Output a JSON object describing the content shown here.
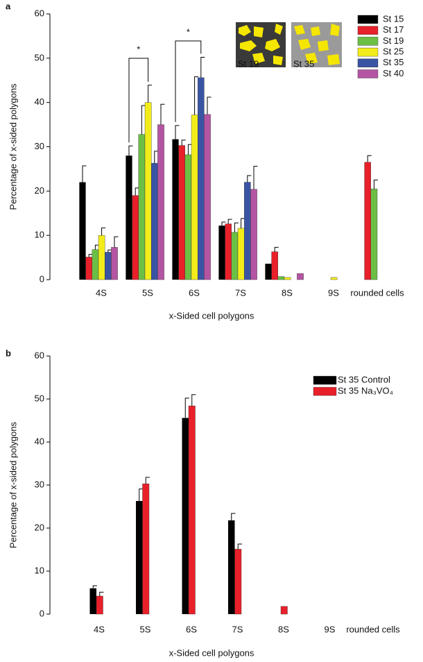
{
  "chart_data": [
    {
      "type": "bar",
      "panel_label": "a",
      "ylabel": "Percentage of x-sided polygons",
      "xlabel": "x-Sided cell polygons",
      "categories": [
        "4S",
        "5S",
        "6S",
        "7S",
        "8S",
        "9S",
        "rounded cells"
      ],
      "ylim": [
        0,
        60
      ],
      "yticks": [
        0,
        10,
        20,
        30,
        40,
        50,
        60
      ],
      "legend": "upper right",
      "annotations": [
        "*",
        "*"
      ],
      "inset_labels": [
        "St 19",
        "St 35"
      ],
      "series": [
        {
          "name": "St 15",
          "color": "#000000",
          "values": [
            22,
            28,
            31.7,
            12.2,
            3.6,
            0,
            0
          ],
          "errors": [
            3.7,
            2.2,
            3.1,
            0.8,
            0,
            0,
            0
          ]
        },
        {
          "name": "St 17",
          "color": "#e8202a",
          "values": [
            5.1,
            19,
            30.3,
            12.6,
            6.3,
            0,
            26.5
          ],
          "errors": [
            0.6,
            1.7,
            1.2,
            1,
            1,
            0,
            1.5
          ]
        },
        {
          "name": "St 19",
          "color": "#6cbf45",
          "values": [
            6.8,
            32.8,
            28.2,
            10.7,
            0.7,
            0,
            20.5
          ],
          "errors": [
            1,
            6.5,
            2.3,
            2.1,
            0,
            0,
            2
          ]
        },
        {
          "name": "St 25",
          "color": "#f2ec1b",
          "values": [
            10,
            40,
            37.2,
            11.6,
            0.5,
            0.5,
            0
          ],
          "errors": [
            1.7,
            3.9,
            8.6,
            2.2,
            0,
            0,
            0
          ]
        },
        {
          "name": "St 35",
          "color": "#3a54a4",
          "values": [
            6.2,
            26.3,
            45.6,
            22,
            0,
            0,
            0
          ],
          "errors": [
            0.5,
            2.7,
            4.6,
            1.5,
            0,
            0,
            0
          ]
        },
        {
          "name": "St 40",
          "color": "#b455a3",
          "values": [
            7.3,
            35,
            37.3,
            20.4,
            1.4,
            0,
            0
          ],
          "errors": [
            2.4,
            4.6,
            3.9,
            5.2,
            0,
            0,
            0
          ]
        }
      ]
    },
    {
      "type": "bar",
      "panel_label": "b",
      "ylabel": "Percentage of x-sided polygons",
      "xlabel": "x-Sided cell polygons",
      "categories": [
        "4S",
        "5S",
        "6S",
        "7S",
        "8S",
        "9S",
        "rounded cells"
      ],
      "ylim": [
        0,
        60
      ],
      "yticks": [
        0,
        10,
        20,
        30,
        40,
        50,
        60
      ],
      "legend": "upper right",
      "series": [
        {
          "name": "St 35 Control",
          "color": "#000000",
          "values": [
            6,
            26.3,
            45.6,
            21.8,
            0,
            0,
            0
          ],
          "errors": [
            0.6,
            2.8,
            4.6,
            1.6,
            0,
            0,
            0
          ]
        },
        {
          "name": "St 35 Na₃VO₄",
          "color": "#e8202a",
          "values": [
            4.2,
            30.3,
            48.4,
            15.1,
            1.8,
            0,
            0
          ],
          "errors": [
            0.9,
            1.5,
            2.6,
            1.2,
            0,
            0,
            0
          ]
        }
      ]
    }
  ]
}
